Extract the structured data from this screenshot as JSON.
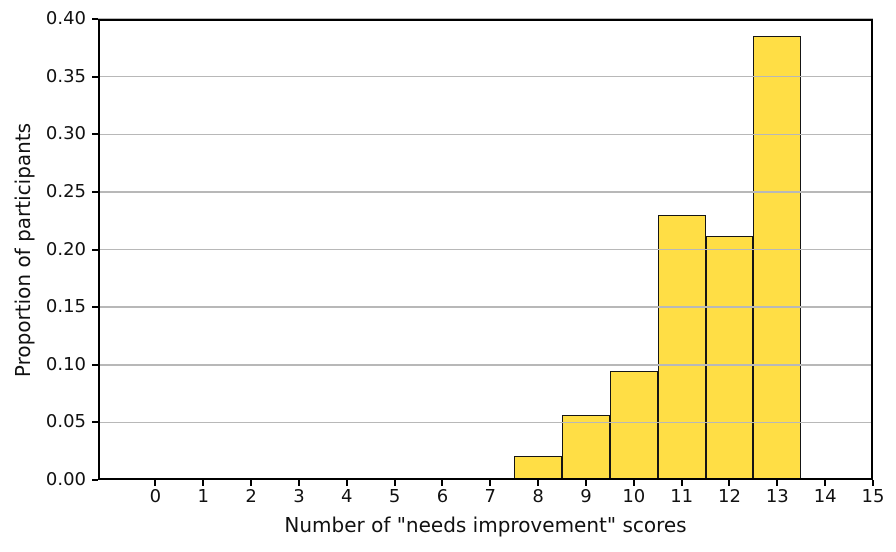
{
  "chart_data": {
    "type": "bar",
    "subtype": "histogram",
    "title": "",
    "xlabel": "Number of \"needs improvement\" scores",
    "ylabel": "Proportion of participants",
    "x": [
      0,
      1,
      2,
      3,
      4,
      5,
      6,
      7,
      8,
      9,
      10,
      11,
      12,
      13
    ],
    "values": [
      0.002,
      0.002,
      0.002,
      0.002,
      0.002,
      0.002,
      0.002,
      0.002,
      0.021,
      0.056,
      0.095,
      0.23,
      0.212,
      0.385
    ],
    "bar_width": 1.0,
    "xlim": [
      -1.2,
      15.0
    ],
    "ylim": [
      0.0,
      0.4
    ],
    "x_ticks": [
      0,
      1,
      2,
      3,
      4,
      5,
      6,
      7,
      8,
      9,
      10,
      11,
      12,
      13,
      14,
      15
    ],
    "x_tick_labels": [
      "0",
      "1",
      "2",
      "3",
      "4",
      "5",
      "6",
      "7",
      "8",
      "9",
      "10",
      "11",
      "12",
      "13",
      "14",
      "15"
    ],
    "y_ticks": [
      0.0,
      0.05,
      0.1,
      0.15,
      0.2,
      0.25,
      0.3,
      0.35,
      0.4
    ],
    "y_tick_labels": [
      "0.00",
      "0.05",
      "0.10",
      "0.15",
      "0.20",
      "0.25",
      "0.30",
      "0.35",
      "0.40"
    ],
    "grid": "horizontal-on-top",
    "legend": "none",
    "colors": {
      "bar_fill": "#ffde45",
      "bar_edge": "#151515",
      "gridline": "#b8b8b8",
      "spine": "#000000",
      "text": "#111111",
      "background": "#ffffff"
    }
  }
}
